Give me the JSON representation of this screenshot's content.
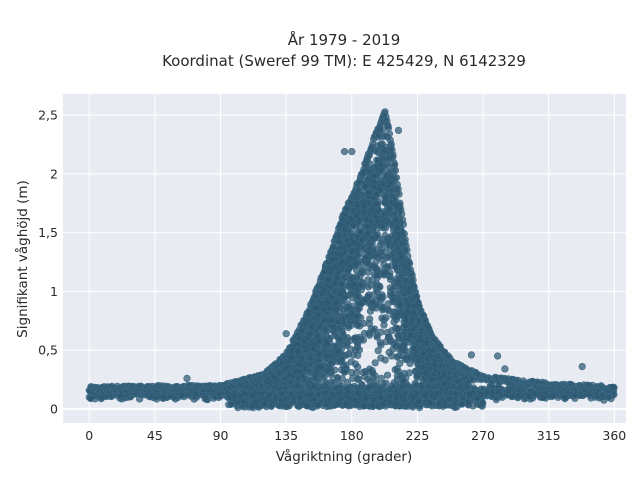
{
  "chart_data": {
    "type": "scatter",
    "title_lines": [
      "År 1979 - 2019",
      "Koordinat (Sweref 99 TM): E 425429, N 6142329"
    ],
    "xlabel": "Vågriktning (grader)",
    "ylabel": "Signifikant våghöjd (m)",
    "xlim": [
      -18,
      368
    ],
    "ylim": [
      -0.12,
      2.68
    ],
    "xticks": [
      0,
      45,
      90,
      135,
      180,
      225,
      270,
      315,
      360
    ],
    "xtick_labels": [
      "0",
      "45",
      "90",
      "135",
      "180",
      "225",
      "270",
      "315",
      "360"
    ],
    "yticks": [
      0,
      0.5,
      1,
      1.5,
      2,
      2.5
    ],
    "ytick_labels": [
      "0",
      "0,5",
      "1",
      "1,5",
      "2",
      "2,5"
    ],
    "grid": true,
    "colors": {
      "plot_background": "#e9ebf2",
      "grid": "#ffffff",
      "marker": "#2f5870",
      "marker_edge": "#3a6a85"
    },
    "series_summary": {
      "x_range": [
        0,
        360
      ],
      "y_floor": 0,
      "background_band_mean_y": 0.14,
      "peak_direction": 202,
      "peak_height": 2.55
    },
    "envelope": [
      {
        "x": 0,
        "y": 0.19
      },
      {
        "x": 45,
        "y": 0.2
      },
      {
        "x": 90,
        "y": 0.2
      },
      {
        "x": 105,
        "y": 0.25
      },
      {
        "x": 120,
        "y": 0.3
      },
      {
        "x": 135,
        "y": 0.47
      },
      {
        "x": 150,
        "y": 0.83
      },
      {
        "x": 165,
        "y": 1.32
      },
      {
        "x": 175,
        "y": 1.7
      },
      {
        "x": 185,
        "y": 1.95
      },
      {
        "x": 195,
        "y": 2.3
      },
      {
        "x": 203,
        "y": 2.55
      },
      {
        "x": 210,
        "y": 2.05
      },
      {
        "x": 218,
        "y": 1.35
      },
      {
        "x": 225,
        "y": 0.92
      },
      {
        "x": 235,
        "y": 0.62
      },
      {
        "x": 250,
        "y": 0.4
      },
      {
        "x": 270,
        "y": 0.28
      },
      {
        "x": 315,
        "y": 0.22
      },
      {
        "x": 360,
        "y": 0.19
      }
    ],
    "outliers": [
      {
        "x": 67,
        "y": 0.26
      },
      {
        "x": 135,
        "y": 0.64
      },
      {
        "x": 175,
        "y": 2.19
      },
      {
        "x": 180,
        "y": 2.19
      },
      {
        "x": 212,
        "y": 2.37
      },
      {
        "x": 262,
        "y": 0.46
      },
      {
        "x": 280,
        "y": 0.45
      },
      {
        "x": 285,
        "y": 0.34
      },
      {
        "x": 338,
        "y": 0.36
      }
    ]
  }
}
